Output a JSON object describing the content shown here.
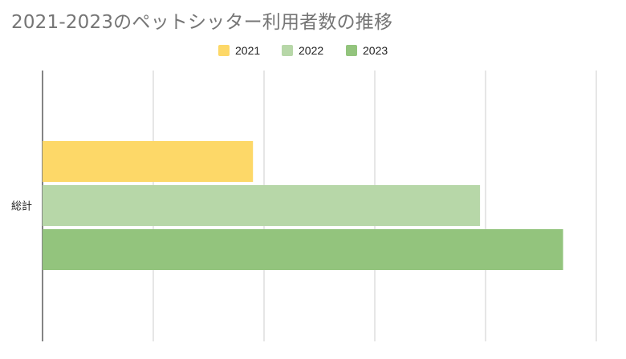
{
  "chart_data": {
    "type": "bar",
    "orientation": "horizontal",
    "title": "2021-2023のペットシッター利用者数の推移",
    "categories": [
      "総計"
    ],
    "series": [
      {
        "name": "2021",
        "values": [
          19
        ],
        "color": "#fdd868"
      },
      {
        "name": "2022",
        "values": [
          39.5
        ],
        "color": "#b7d7a8"
      },
      {
        "name": "2023",
        "values": [
          47
        ],
        "color": "#93c47d"
      }
    ],
    "xlim": [
      0,
      50
    ],
    "grid": true,
    "legend": "top-center"
  }
}
